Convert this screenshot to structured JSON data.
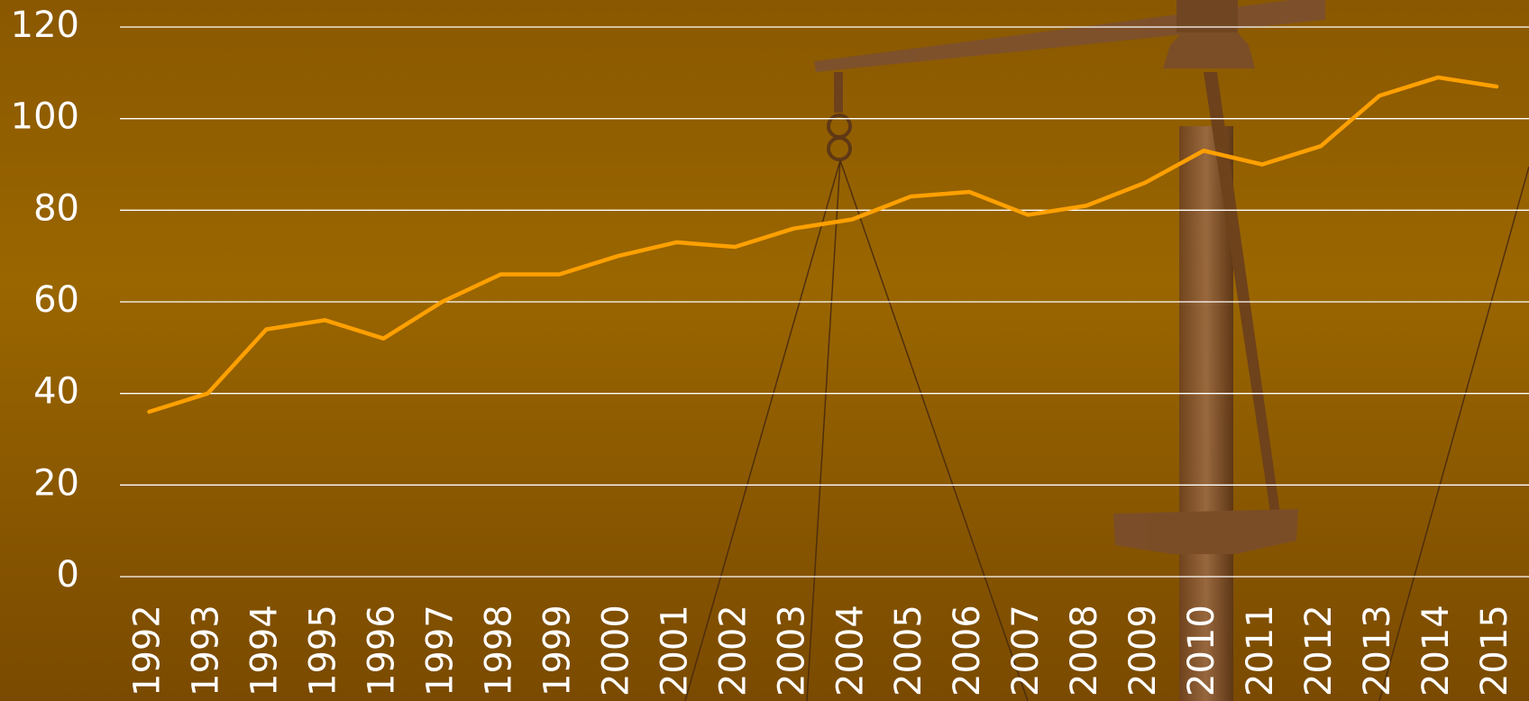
{
  "chart_data": {
    "type": "line",
    "categories": [
      "1992",
      "1993",
      "1994",
      "1995",
      "1996",
      "1997",
      "1998",
      "1999",
      "2000",
      "2001",
      "2002",
      "2003",
      "2004",
      "2005",
      "2006",
      "2007",
      "2008",
      "2009",
      "2010",
      "2011",
      "2012",
      "2013",
      "2014",
      "2015"
    ],
    "values": [
      36,
      40,
      54,
      56,
      52,
      60,
      66,
      66,
      70,
      73,
      72,
      76,
      78,
      83,
      84,
      79,
      81,
      86,
      93,
      90,
      94,
      105,
      109,
      107
    ],
    "color": "#ffa000",
    "ylim": [
      0,
      120
    ],
    "yticks": [
      0,
      20,
      40,
      60,
      80,
      100,
      120
    ],
    "grid": true
  }
}
